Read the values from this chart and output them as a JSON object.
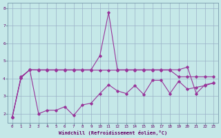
{
  "xlabel": "Windchill (Refroidissement éolien,°C)",
  "background_color": "#c5e8e8",
  "grid_color": "#9ab0c8",
  "line_color": "#993399",
  "xmin": -0.5,
  "xmax": 23.5,
  "ymin": 1.5,
  "ymax": 8.3,
  "yticks": [
    2,
    3,
    4,
    5,
    6,
    7,
    8
  ],
  "xticks": [
    0,
    1,
    2,
    3,
    4,
    5,
    6,
    7,
    8,
    9,
    10,
    11,
    12,
    13,
    14,
    15,
    16,
    17,
    18,
    19,
    20,
    21,
    22,
    23
  ],
  "series1_x": [
    0,
    1,
    2,
    3,
    4,
    5,
    6,
    7,
    8,
    9,
    10,
    11,
    12,
    13,
    14,
    15,
    16,
    17,
    18,
    19,
    20,
    21,
    22,
    23
  ],
  "series1_y": [
    1.8,
    4.05,
    4.5,
    2.0,
    2.2,
    2.2,
    2.4,
    1.9,
    2.5,
    2.6,
    3.15,
    3.65,
    3.3,
    3.15,
    3.6,
    3.1,
    3.9,
    3.9,
    3.15,
    3.85,
    3.4,
    3.5,
    3.6,
    3.75
  ],
  "series2_x": [
    0,
    1,
    2,
    3,
    4,
    5,
    6,
    7,
    8,
    9,
    10,
    11,
    12,
    13,
    14,
    15,
    16,
    17,
    18,
    19,
    20,
    21,
    22,
    23
  ],
  "series2_y": [
    1.8,
    4.05,
    4.5,
    4.5,
    4.5,
    4.5,
    4.5,
    4.5,
    4.5,
    4.5,
    5.3,
    7.75,
    4.5,
    4.5,
    4.5,
    4.5,
    4.5,
    4.5,
    4.5,
    4.5,
    4.65,
    3.15,
    3.65,
    3.75
  ],
  "series3_x": [
    0,
    1,
    2,
    3,
    4,
    5,
    6,
    7,
    8,
    9,
    10,
    11,
    12,
    13,
    14,
    15,
    16,
    17,
    18,
    19,
    20,
    21,
    22,
    23
  ],
  "series3_y": [
    1.8,
    4.1,
    4.5,
    4.48,
    4.48,
    4.48,
    4.48,
    4.48,
    4.48,
    4.48,
    4.48,
    4.48,
    4.48,
    4.48,
    4.48,
    4.48,
    4.48,
    4.48,
    4.48,
    4.1,
    4.1,
    4.1,
    4.1,
    4.1
  ]
}
